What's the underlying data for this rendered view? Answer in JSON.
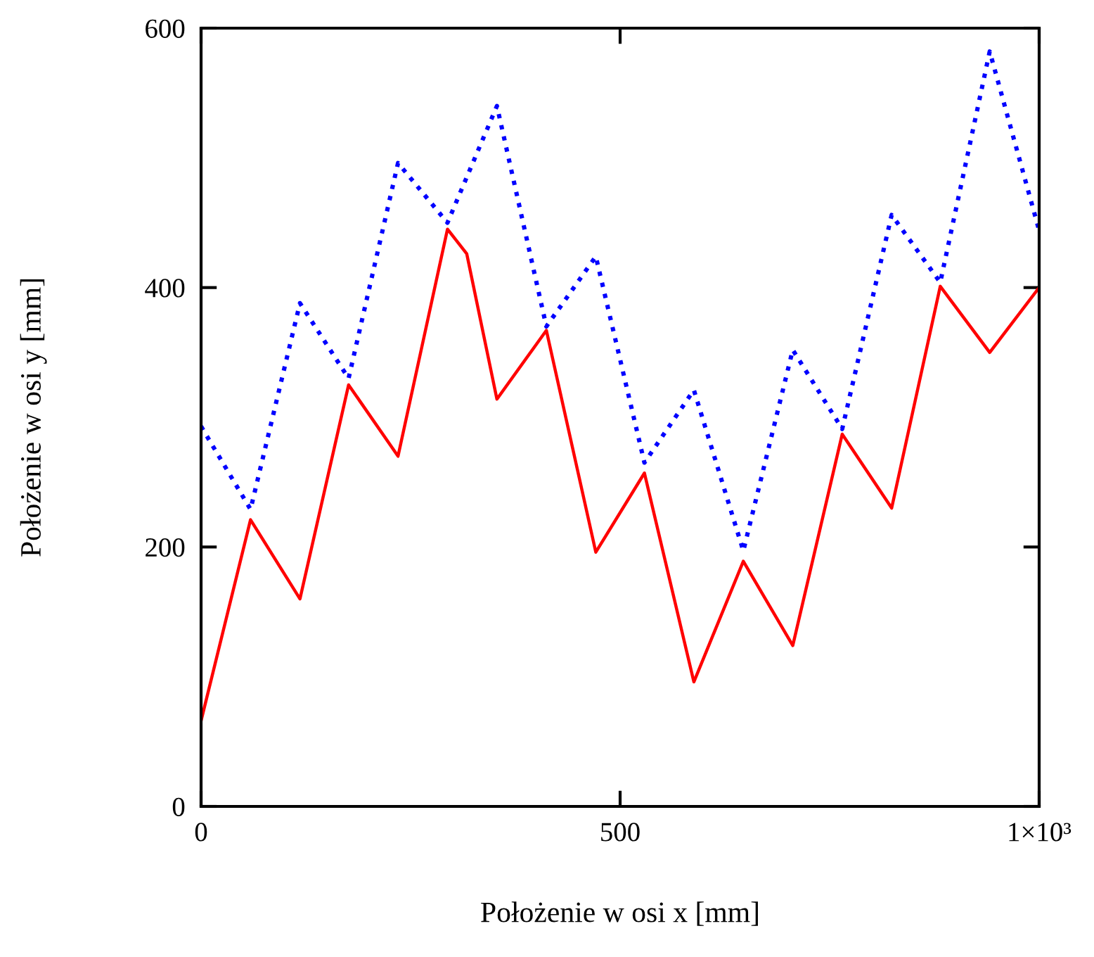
{
  "chart_data": {
    "type": "line",
    "xlabel": "Położenie w osi x [mm]",
    "ylabel": "Położenie w osi y [mm]",
    "xlim": [
      0,
      1000
    ],
    "ylim": [
      0,
      600
    ],
    "xticks": [
      0,
      500,
      {
        "value": 1000,
        "label": "1×10³"
      }
    ],
    "yticks": [
      0,
      200,
      400,
      600
    ],
    "grid": false,
    "legend": false,
    "marker": "none",
    "series": [
      {
        "color": "#ff0000",
        "line_style": "solid",
        "x": [
          0,
          59,
          118,
          176,
          235,
          294,
          317,
          353,
          412,
          471,
          529,
          588,
          647,
          706,
          765,
          824,
          882,
          941,
          1000
        ],
        "values": [
          66,
          221,
          160,
          325,
          270,
          445,
          426,
          314,
          367,
          196,
          257,
          96,
          189,
          124,
          287,
          230,
          401,
          350,
          400
        ]
      },
      {
        "color": "#0000ff",
        "line_style": "dotted",
        "x": [
          0,
          59,
          118,
          176,
          235,
          294,
          353,
          412,
          471,
          529,
          588,
          647,
          706,
          765,
          824,
          882,
          941,
          1000
        ],
        "values": [
          293,
          229,
          388,
          330,
          496,
          450,
          540,
          370,
          424,
          265,
          321,
          197,
          352,
          291,
          456,
          404,
          582,
          444
        ]
      }
    ]
  }
}
